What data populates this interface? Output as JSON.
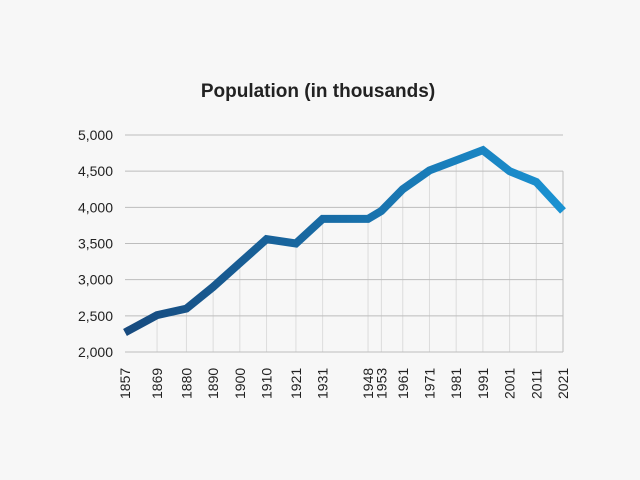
{
  "chart_data": {
    "type": "line",
    "title": "Population (in thousands)",
    "xlabel": "",
    "ylabel": "",
    "x": [
      1857,
      1869,
      1880,
      1890,
      1900,
      1910,
      1921,
      1931,
      1948,
      1953,
      1961,
      1971,
      1981,
      1991,
      2001,
      2011,
      2021
    ],
    "series": [
      {
        "values": [
          2270,
          2510,
          2600,
          2900,
          3230,
          3560,
          3500,
          3840,
          3840,
          3950,
          4250,
          4510,
          4650,
          4790,
          4500,
          4350,
          3950
        ]
      }
    ],
    "yticks": [
      2000,
      2500,
      3000,
      3500,
      4000,
      4500,
      5000
    ],
    "ytick_labels": [
      "2,000",
      "2,500",
      "3,000",
      "3,500",
      "4,000",
      "4,500",
      "5,000"
    ],
    "xtick_labels": [
      "1857",
      "1869",
      "1880",
      "1890",
      "1900",
      "1910",
      "1921",
      "1931",
      "1948",
      "1953",
      "1961",
      "1971",
      "1981",
      "1991",
      "2001",
      "2011",
      "2021"
    ],
    "ylim": [
      2000,
      5000
    ],
    "xlim": [
      1857,
      2021
    ],
    "grid": true,
    "colors": {
      "line_start": "#174a7e",
      "line_end": "#1a92d2",
      "grid": "#bdbdbd",
      "background": "#f7f7f7"
    }
  }
}
